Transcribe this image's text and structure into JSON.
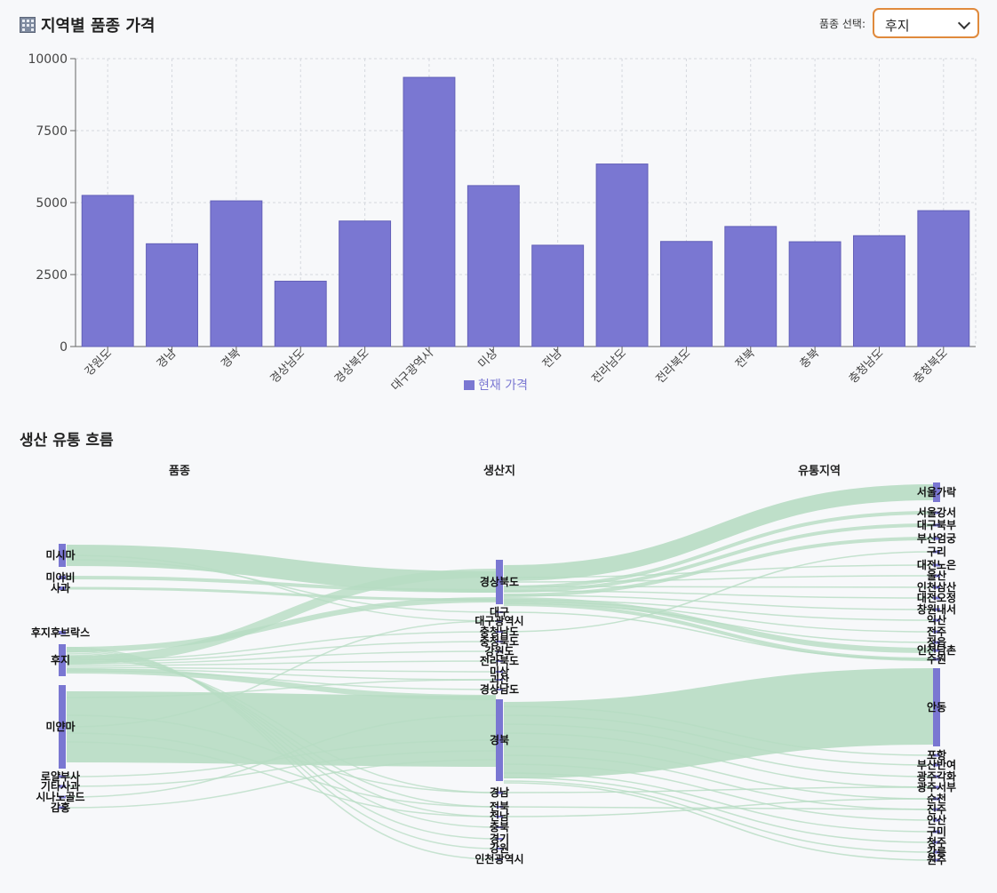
{
  "header": {
    "title": "지역별 품종 가격",
    "title_icon": "building-icon",
    "select_label": "품종 선택:",
    "select_value": "후지"
  },
  "chart_data": [
    {
      "type": "bar",
      "categories": [
        "강원도",
        "경남",
        "경북",
        "경상남도",
        "경상북도",
        "대구광역시",
        "미상",
        "전남",
        "전라남도",
        "전라북도",
        "전북",
        "충북",
        "충청남도",
        "충청북도"
      ],
      "series": [
        {
          "name": "현재 가격",
          "values": [
            5250,
            3570,
            5060,
            2270,
            4360,
            9350,
            5590,
            3520,
            6340,
            3650,
            4170,
            3640,
            3850,
            4720
          ]
        }
      ],
      "ylim": [
        0,
        10000
      ],
      "yticks": [
        0,
        2500,
        5000,
        7500,
        10000
      ],
      "grid": true,
      "legend": "bottom",
      "color": "#7a77d2"
    },
    {
      "type": "sankey",
      "title": "생산 유통 흐름",
      "column_labels": [
        "품종",
        "생산지",
        "유통지역"
      ],
      "nodes": {
        "col0": [
          "미시마",
          "미야비",
          "사과",
          "후지후브락스",
          "후지",
          "미얀마",
          "로얄부사",
          "기타사과",
          "시나노골드",
          "감홍"
        ],
        "col1": [
          "경상북도",
          "대구",
          "대구광역시",
          "충청남도",
          "충청북도",
          "강원도",
          "전라북도",
          "미상",
          "괴산",
          "경상남도",
          "경북",
          "경남",
          "전북",
          "전남",
          "충북",
          "경기",
          "강원",
          "인천광역시"
        ],
        "col2": [
          "서울가락",
          "서울강서",
          "대구북부",
          "부산엄궁",
          "구리",
          "대전노은",
          "울산",
          "인천삼산",
          "대전오정",
          "창원내서",
          "익산",
          "전주",
          "정읍",
          "인천남촌",
          "수원",
          "안동",
          "포항",
          "부산반여",
          "광주각화",
          "광주서부",
          "순천",
          "진주",
          "안산",
          "구미",
          "청주",
          "강릉",
          "원주"
        ]
      },
      "node_color": "#7a77d2",
      "link_color": "#b7dcc3"
    }
  ]
}
